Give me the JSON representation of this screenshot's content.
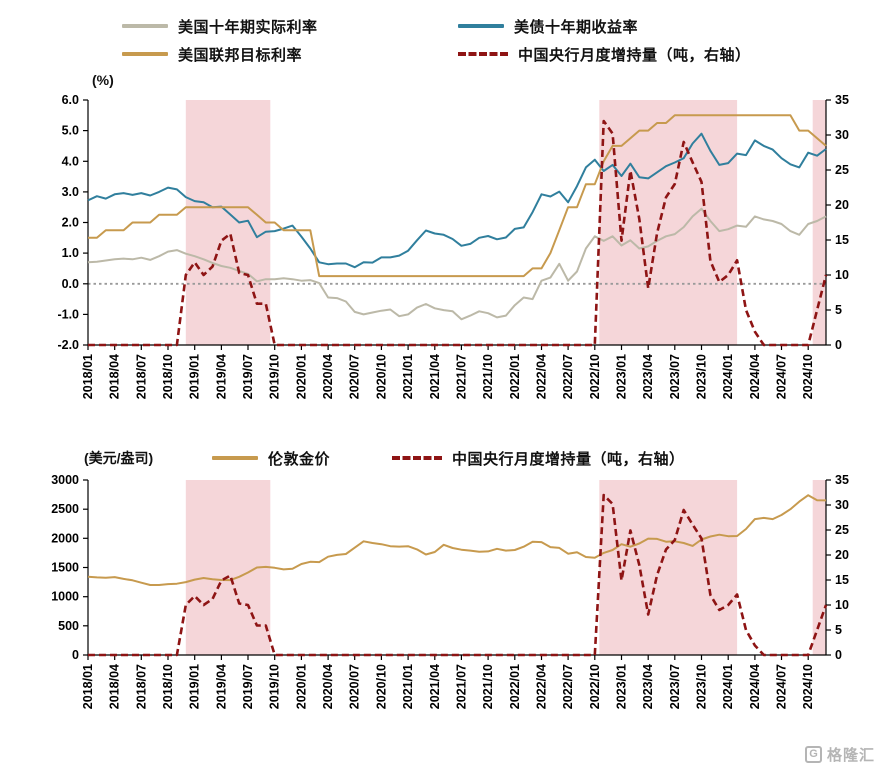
{
  "watermark": {
    "text": "格隆汇"
  },
  "colors": {
    "real_rate": "#bcb9a8",
    "treasury": "#307f9d",
    "fed": "#c79a4e",
    "gold": "#c79a4e",
    "pboc": "#8e1414",
    "band": "#f5d6d9",
    "axis": "#000000",
    "zero_line": "#9a9a9a"
  },
  "chart_data": [
    {
      "type": "line",
      "unit_label": "(%)",
      "legend_position": "top",
      "x_monthly_range": [
        "2018/01",
        "2024/12"
      ],
      "x_tick_labels": [
        "2018/01",
        "2018/04",
        "2018/07",
        "2018/10",
        "2019/01",
        "2019/04",
        "2019/07",
        "2019/10",
        "2020/01",
        "2020/04",
        "2020/07",
        "2020/10",
        "2021/01",
        "2021/04",
        "2021/07",
        "2021/10",
        "2022/01",
        "2022/04",
        "2022/07",
        "2022/10",
        "2023/01",
        "2023/04",
        "2023/07",
        "2023/10",
        "2024/01",
        "2024/04",
        "2024/07",
        "2024/10"
      ],
      "left_axis": {
        "min": -2,
        "max": 6,
        "labels": [
          "6.0",
          "5.0",
          "4.0",
          "3.0",
          "2.0",
          "1.0",
          "0.0",
          "-1.0",
          "-2.0"
        ]
      },
      "right_axis": {
        "min": 0,
        "max": 35,
        "labels": [
          "35",
          "30",
          "25",
          "20",
          "15",
          "10",
          "5",
          "0"
        ]
      },
      "dotted_line_at": 0,
      "highlight_bands": [
        {
          "from": 11,
          "to": 20.5
        },
        {
          "from": 57.5,
          "to": 73
        },
        {
          "from": 81.5,
          "to": 83
        }
      ],
      "series": [
        {
          "name": "美国十年期实际利率",
          "axis": "left",
          "style": "solid",
          "color_key": "real_rate",
          "values": [
            0.7,
            0.72,
            0.76,
            0.8,
            0.82,
            0.8,
            0.85,
            0.78,
            0.9,
            1.05,
            1.1,
            0.98,
            0.9,
            0.8,
            0.68,
            0.58,
            0.52,
            0.42,
            0.32,
            0.08,
            0.15,
            0.15,
            0.18,
            0.15,
            0.1,
            0.12,
            0.02,
            -0.45,
            -0.47,
            -0.58,
            -0.92,
            -1.0,
            -0.94,
            -0.88,
            -0.84,
            -1.06,
            -1.0,
            -0.78,
            -0.66,
            -0.8,
            -0.86,
            -0.9,
            -1.16,
            -1.04,
            -0.9,
            -0.96,
            -1.1,
            -1.04,
            -0.7,
            -0.45,
            -0.5,
            0.1,
            0.2,
            0.65,
            0.1,
            0.4,
            1.15,
            1.55,
            1.4,
            1.55,
            1.25,
            1.42,
            1.15,
            1.22,
            1.4,
            1.55,
            1.62,
            1.85,
            2.2,
            2.45,
            2.05,
            1.72,
            1.78,
            1.9,
            1.86,
            2.2,
            2.1,
            2.05,
            1.95,
            1.72,
            1.6,
            1.95,
            2.05,
            2.2
          ]
        },
        {
          "name": "美债十年期收益率",
          "axis": "left",
          "style": "solid",
          "color_key": "treasury",
          "values": [
            2.72,
            2.86,
            2.78,
            2.92,
            2.96,
            2.9,
            2.96,
            2.88,
            3.0,
            3.14,
            3.08,
            2.83,
            2.7,
            2.66,
            2.5,
            2.52,
            2.26,
            2.0,
            2.06,
            1.52,
            1.7,
            1.72,
            1.8,
            1.9,
            1.54,
            1.15,
            0.7,
            0.64,
            0.66,
            0.66,
            0.54,
            0.7,
            0.69,
            0.86,
            0.86,
            0.92,
            1.08,
            1.42,
            1.74,
            1.64,
            1.6,
            1.46,
            1.24,
            1.3,
            1.5,
            1.56,
            1.45,
            1.51,
            1.79,
            1.84,
            2.34,
            2.92,
            2.85,
            3.01,
            2.66,
            3.19,
            3.8,
            4.05,
            3.68,
            3.88,
            3.52,
            3.92,
            3.48,
            3.44,
            3.64,
            3.84,
            3.96,
            4.1,
            4.58,
            4.9,
            4.34,
            3.88,
            3.94,
            4.25,
            4.2,
            4.68,
            4.5,
            4.38,
            4.1,
            3.9,
            3.8,
            4.28,
            4.18,
            4.4
          ]
        },
        {
          "name": "美国联邦目标利率",
          "axis": "left",
          "style": "solid",
          "color_key": "fed",
          "values": [
            1.5,
            1.5,
            1.75,
            1.75,
            1.75,
            2.0,
            2.0,
            2.0,
            2.25,
            2.25,
            2.25,
            2.5,
            2.5,
            2.5,
            2.5,
            2.5,
            2.5,
            2.5,
            2.5,
            2.25,
            2.0,
            2.0,
            1.75,
            1.75,
            1.75,
            1.75,
            0.25,
            0.25,
            0.25,
            0.25,
            0.25,
            0.25,
            0.25,
            0.25,
            0.25,
            0.25,
            0.25,
            0.25,
            0.25,
            0.25,
            0.25,
            0.25,
            0.25,
            0.25,
            0.25,
            0.25,
            0.25,
            0.25,
            0.25,
            0.25,
            0.5,
            0.5,
            1.0,
            1.75,
            2.5,
            2.5,
            3.25,
            3.25,
            4.0,
            4.5,
            4.5,
            4.75,
            5.0,
            5.0,
            5.25,
            5.25,
            5.5,
            5.5,
            5.5,
            5.5,
            5.5,
            5.5,
            5.5,
            5.5,
            5.5,
            5.5,
            5.5,
            5.5,
            5.5,
            5.5,
            5.0,
            5.0,
            4.75,
            4.5
          ]
        },
        {
          "name": "中国央行月度增持量（吨，右轴）",
          "axis": "right",
          "style": "dashed",
          "color_key": "pboc",
          "values": [
            0,
            0,
            0,
            0,
            0,
            0,
            0,
            0,
            0,
            0,
            0,
            10.0,
            11.8,
            10.0,
            11.2,
            14.9,
            15.9,
            10.3,
            10.0,
            5.9,
            5.9,
            0,
            0,
            0,
            0,
            0,
            0,
            0,
            0,
            0,
            0,
            0,
            0,
            0,
            0,
            0,
            0,
            0,
            0,
            0,
            0,
            0,
            0,
            0,
            0,
            0,
            0,
            0,
            0,
            0,
            0,
            0,
            0,
            0,
            0,
            0,
            0,
            0,
            32.0,
            30.2,
            14.9,
            24.9,
            18.0,
            8.1,
            16.0,
            21.1,
            23.0,
            29.0,
            26.1,
            23.3,
            12.0,
            9.0,
            10.0,
            12.1,
            5.0,
            1.9,
            0,
            0,
            0,
            0,
            0,
            0,
            5.0,
            10.0
          ]
        }
      ]
    },
    {
      "type": "line",
      "unit_label": "(美元/盎司)",
      "legend_position": "top",
      "x_monthly_range": [
        "2018/01",
        "2024/12"
      ],
      "x_tick_labels": [
        "2018/01",
        "2018/04",
        "2018/07",
        "2018/10",
        "2019/01",
        "2019/04",
        "2019/07",
        "2019/10",
        "2020/01",
        "2020/04",
        "2020/07",
        "2020/10",
        "2021/01",
        "2021/04",
        "2021/07",
        "2021/10",
        "2022/01",
        "2022/04",
        "2022/07",
        "2022/10",
        "2023/01",
        "2023/04",
        "2023/07",
        "2023/10",
        "2024/01",
        "2024/04",
        "2024/07",
        "2024/10"
      ],
      "left_axis": {
        "min": 0,
        "max": 3000,
        "labels": [
          "3000",
          "2500",
          "2000",
          "1500",
          "1000",
          "500",
          "0"
        ]
      },
      "right_axis": {
        "min": 0,
        "max": 35,
        "labels": [
          "35",
          "30",
          "25",
          "20",
          "15",
          "10",
          "5",
          "0"
        ]
      },
      "dotted_line_at": null,
      "highlight_bands": [
        {
          "from": 11,
          "to": 20.5
        },
        {
          "from": 57.5,
          "to": 73
        },
        {
          "from": 81.5,
          "to": 83
        }
      ],
      "series": [
        {
          "name": "伦敦金价",
          "axis": "left",
          "style": "solid",
          "color_key": "gold",
          "values": [
            1340,
            1330,
            1325,
            1335,
            1305,
            1280,
            1240,
            1200,
            1200,
            1215,
            1222,
            1250,
            1292,
            1320,
            1300,
            1286,
            1284,
            1340,
            1414,
            1500,
            1510,
            1495,
            1468,
            1480,
            1560,
            1598,
            1592,
            1685,
            1716,
            1732,
            1840,
            1950,
            1920,
            1900,
            1866,
            1858,
            1866,
            1810,
            1722,
            1766,
            1890,
            1834,
            1806,
            1790,
            1770,
            1776,
            1820,
            1790,
            1800,
            1856,
            1940,
            1936,
            1850,
            1836,
            1736,
            1760,
            1680,
            1666,
            1750,
            1800,
            1900,
            1856,
            1912,
            1996,
            1990,
            1942,
            1950,
            1920,
            1870,
            1980,
            2032,
            2062,
            2036,
            2040,
            2160,
            2330,
            2350,
            2330,
            2400,
            2500,
            2630,
            2740,
            2652,
            2650
          ]
        },
        {
          "name": "中国央行月度增持量（吨，右轴）",
          "axis": "right",
          "style": "dashed",
          "color_key": "pboc",
          "values": [
            0,
            0,
            0,
            0,
            0,
            0,
            0,
            0,
            0,
            0,
            0,
            10.0,
            11.8,
            10.0,
            11.2,
            14.9,
            15.9,
            10.3,
            10.0,
            5.9,
            5.9,
            0,
            0,
            0,
            0,
            0,
            0,
            0,
            0,
            0,
            0,
            0,
            0,
            0,
            0,
            0,
            0,
            0,
            0,
            0,
            0,
            0,
            0,
            0,
            0,
            0,
            0,
            0,
            0,
            0,
            0,
            0,
            0,
            0,
            0,
            0,
            0,
            0,
            32.0,
            30.2,
            14.9,
            24.9,
            18.0,
            8.1,
            16.0,
            21.1,
            23.0,
            29.0,
            26.1,
            23.3,
            12.0,
            9.0,
            10.0,
            12.1,
            5.0,
            1.9,
            0,
            0,
            0,
            0,
            0,
            0,
            5.0,
            10.0
          ]
        }
      ]
    }
  ]
}
